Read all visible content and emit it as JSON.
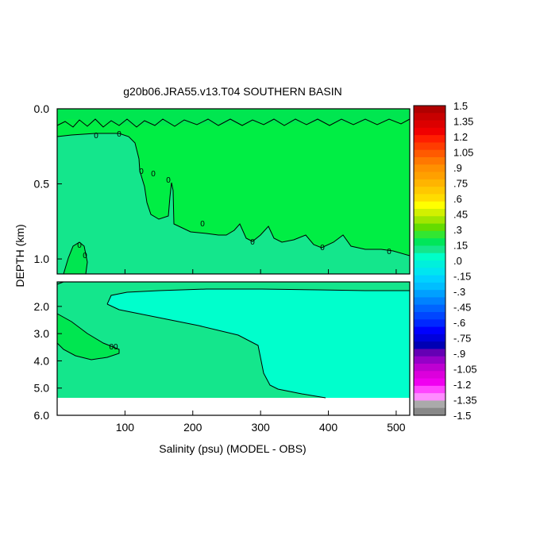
{
  "chart_data": {
    "type": "heatmap",
    "title": "g20b06.JRA55.v13.T04 SOUTHERN BASIN",
    "xlabel": "Salinity (psu) (MODEL - OBS)",
    "ylabel": "DEPTH (km)",
    "x_ticks": [
      "100",
      "200",
      "300",
      "400",
      "500"
    ],
    "x_tick_values": [
      100,
      200,
      300,
      400,
      500
    ],
    "xlim": [
      0,
      520
    ],
    "upper_panel": {
      "ylim": [
        0,
        1.1
      ],
      "y_ticks": [
        "0.0",
        "0.5",
        "1.0"
      ],
      "y_tick_values": [
        0.0,
        0.5,
        1.0
      ]
    },
    "lower_panel": {
      "ylim": [
        1.1,
        6.0
      ],
      "y_ticks": [
        "2.0",
        "3.0",
        "4.0",
        "5.0",
        "6.0"
      ],
      "y_tick_values": [
        2.0,
        3.0,
        4.0,
        5.0,
        6.0
      ]
    },
    "contour_labels": [
      "0",
      "0",
      "0",
      "0",
      "0",
      "0",
      "0",
      "0",
      "0",
      "0",
      "00",
      "0"
    ],
    "colorbar": {
      "labels": [
        "1.5",
        "1.35",
        "1.2",
        "1.05",
        ".9",
        ".75",
        ".6",
        ".45",
        ".3",
        ".15",
        ".0",
        "-.15",
        "-.3",
        "-.45",
        "-.6",
        "-.75",
        "-.9",
        "-1.05",
        "-1.2",
        "-1.35",
        "-1.5"
      ],
      "colors": [
        "#b00000",
        "#c80000",
        "#dc0000",
        "#f00000",
        "#ff1e00",
        "#ff3c00",
        "#ff5a00",
        "#ff7800",
        "#ff9000",
        "#ffa000",
        "#ffb400",
        "#ffc800",
        "#ffdc00",
        "#ffff00",
        "#d2f000",
        "#a0e600",
        "#64dc00",
        "#32e632",
        "#00e65a",
        "#14e68c",
        "#00ffc8",
        "#00f0dc",
        "#00e6f0",
        "#00d2ff",
        "#00beff",
        "#00a0ff",
        "#0082ff",
        "#0064ff",
        "#0046ff",
        "#0028ff",
        "#0000ff",
        "#0000dc",
        "#0000b4",
        "#6400b4",
        "#9600c8",
        "#be00d2",
        "#dc00dc",
        "#f000f0",
        "#ff46ff",
        "#ff8cff",
        "#aaaaaa",
        "#888888"
      ]
    },
    "field_colors": {
      "surface_band": "#00e650",
      "upper_interior": "#00ee44",
      "deep_western": "#14e68c",
      "deep_interior": "#00f0c8",
      "deep_core": "#00ffcc",
      "lower_left_blob": "#00e650",
      "missing": "#ffffff"
    }
  }
}
